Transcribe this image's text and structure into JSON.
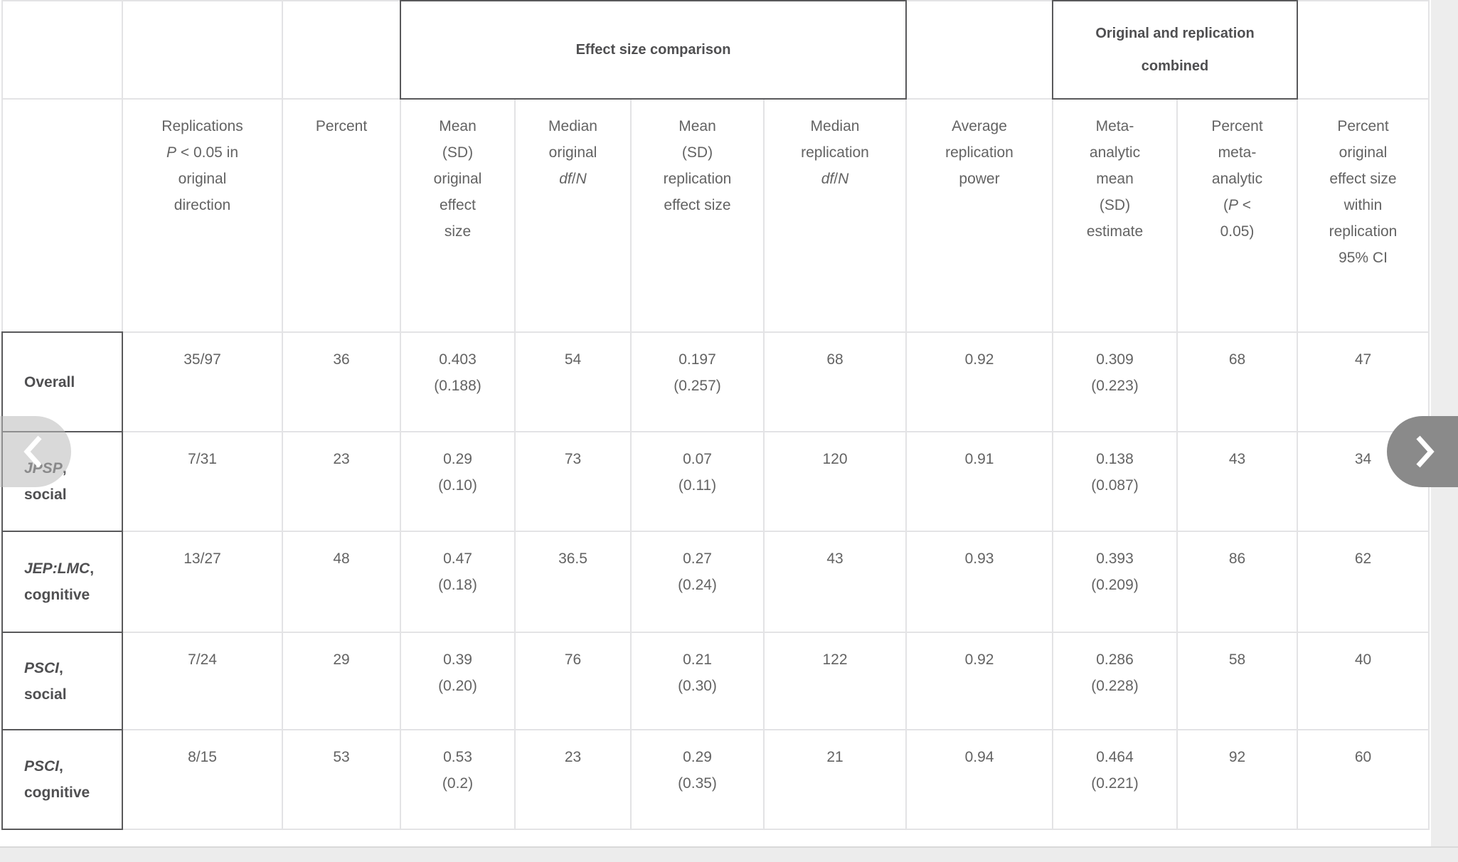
{
  "colors": {
    "grid_line": "#e3e3e5",
    "dark_border": "#59595b",
    "text": "#636363",
    "bold_text": "#4f4f51",
    "next_button_bg": "#8a8a8a",
    "prev_button_bg": "#d9d9d9",
    "page_edge_bg": "#ececec"
  },
  "table": {
    "span_headers": [
      {
        "lines": [
          "Effect size comparison"
        ]
      },
      {
        "lines": [
          "Original and replication",
          "combined"
        ]
      }
    ],
    "columns": [
      {
        "lines": [
          "Replications",
          [
            {
              "text": "P",
              "italic": true
            },
            {
              "text": " < 0.05 in"
            }
          ],
          "original",
          "direction"
        ]
      },
      {
        "lines": [
          "Percent"
        ]
      },
      {
        "lines": [
          "Mean",
          "(SD)",
          "original",
          "effect",
          "size"
        ]
      },
      {
        "lines": [
          "Median",
          "original",
          [
            {
              "text": "df",
              "italic": true
            },
            {
              "text": "/"
            },
            {
              "text": "N",
              "italic": true
            }
          ]
        ]
      },
      {
        "lines": [
          "Mean",
          "(SD)",
          "replication",
          "effect size"
        ]
      },
      {
        "lines": [
          "Median",
          "replication",
          [
            {
              "text": "df",
              "italic": true
            },
            {
              "text": "/"
            },
            {
              "text": "N",
              "italic": true
            }
          ]
        ]
      },
      {
        "lines": [
          "Average",
          "replication",
          "power"
        ]
      },
      {
        "lines": [
          "Meta-",
          "analytic",
          "mean",
          "(SD)",
          "estimate"
        ]
      },
      {
        "lines": [
          "Percent",
          "meta-",
          "analytic",
          [
            {
              "text": "("
            },
            {
              "text": "P",
              "italic": true
            },
            {
              "text": " <"
            }
          ],
          "0.05)"
        ]
      },
      {
        "lines": [
          "Percent",
          "original",
          "effect size",
          "within",
          "replication",
          "95% CI"
        ]
      }
    ],
    "rows": [
      {
        "header": {
          "lines": [
            "Overall"
          ]
        },
        "cells": [
          [
            "35/97"
          ],
          [
            "36"
          ],
          [
            "0.403",
            "(0.188)"
          ],
          [
            "54"
          ],
          [
            "0.197",
            "(0.257)"
          ],
          [
            "68"
          ],
          [
            "0.92"
          ],
          [
            "0.309",
            "(0.223)"
          ],
          [
            "68"
          ],
          [
            "47"
          ]
        ]
      },
      {
        "header": {
          "lines": [
            [
              {
                "text": "JPSP",
                "italic": true
              },
              {
                "text": ","
              }
            ],
            "social"
          ]
        },
        "cells": [
          [
            "7/31"
          ],
          [
            "23"
          ],
          [
            "0.29",
            "(0.10)"
          ],
          [
            "73"
          ],
          [
            "0.07",
            "(0.11)"
          ],
          [
            "120"
          ],
          [
            "0.91"
          ],
          [
            "0.138",
            "(0.087)"
          ],
          [
            "43"
          ],
          [
            "34"
          ]
        ]
      },
      {
        "header": {
          "lines": [
            [
              {
                "text": "JEP:LMC",
                "italic": true
              },
              {
                "text": ","
              }
            ],
            "cognitive"
          ]
        },
        "cells": [
          [
            "13/27"
          ],
          [
            "48"
          ],
          [
            "0.47",
            "(0.18)"
          ],
          [
            "36.5"
          ],
          [
            "0.27",
            "(0.24)"
          ],
          [
            "43"
          ],
          [
            "0.93"
          ],
          [
            "0.393",
            "(0.209)"
          ],
          [
            "86"
          ],
          [
            "62"
          ]
        ]
      },
      {
        "header": {
          "lines": [
            [
              {
                "text": "PSCI",
                "italic": true
              },
              {
                "text": ","
              }
            ],
            "social"
          ]
        },
        "cells": [
          [
            "7/24"
          ],
          [
            "29"
          ],
          [
            "0.39",
            "(0.20)"
          ],
          [
            "76"
          ],
          [
            "0.21",
            "(0.30)"
          ],
          [
            "122"
          ],
          [
            "0.92"
          ],
          [
            "0.286",
            "(0.228)"
          ],
          [
            "58"
          ],
          [
            "40"
          ]
        ]
      },
      {
        "header": {
          "lines": [
            [
              {
                "text": "PSCI",
                "italic": true
              },
              {
                "text": ","
              }
            ],
            "cognitive"
          ]
        },
        "cells": [
          [
            "8/15"
          ],
          [
            "53"
          ],
          [
            "0.53",
            "(0.2)"
          ],
          [
            "23"
          ],
          [
            "0.29",
            "(0.35)"
          ],
          [
            "21"
          ],
          [
            "0.94"
          ],
          [
            "0.464",
            "(0.221)"
          ],
          [
            "92"
          ],
          [
            "60"
          ]
        ]
      }
    ]
  },
  "nav": {
    "prev_icon": "chevron-left",
    "next_icon": "chevron-right"
  }
}
